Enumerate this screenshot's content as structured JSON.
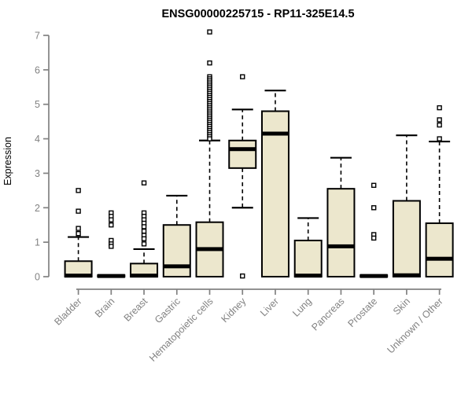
{
  "colors": {
    "box_fill": "#ece7cd",
    "box_border": "#000000",
    "median": "#000000",
    "axis": "#828282",
    "axis_text": "#828282",
    "title_text": "#000000",
    "outlier_fill": "#ffffff",
    "background": "#ffffff"
  },
  "chart_data": {
    "type": "boxplot",
    "title": "ENSG00000225715 - RP11-325E14.5",
    "xlabel": "",
    "ylabel": "Expression",
    "ylim": [
      0,
      7.3
    ],
    "yticks": [
      0,
      1,
      2,
      3,
      4,
      5,
      6,
      7
    ],
    "grid": "off",
    "legend": "none",
    "categories": [
      "Bladder",
      "Brain",
      "Breast",
      "Gastric",
      "Hematopoietic cells",
      "Kidney",
      "Liver",
      "Lung",
      "Pancreas",
      "Prostate",
      "Skin",
      "Unknown / Other"
    ],
    "series": [
      {
        "name": "Bladder",
        "q1": 0,
        "median": 0.03,
        "q3": 0.45,
        "whisker_low": 0,
        "whisker_high": 1.15,
        "outliers": [
          2.5,
          1.9,
          1.4,
          1.25
        ]
      },
      {
        "name": "Brain",
        "q1": 0,
        "median": 0.02,
        "q3": 0.04,
        "whisker_low": 0,
        "whisker_high": 0.04,
        "outliers": [
          1.85,
          1.75,
          1.65,
          1.5,
          1.05,
          0.95,
          0.88
        ]
      },
      {
        "name": "Breast",
        "q1": 0,
        "median": 0.03,
        "q3": 0.38,
        "whisker_low": 0,
        "whisker_high": 0.8,
        "outliers": [
          2.72,
          1.85,
          1.75,
          1.65,
          1.55,
          1.45,
          1.32,
          1.2,
          1.1,
          0.95
        ]
      },
      {
        "name": "Gastric",
        "q1": 0,
        "median": 0.3,
        "q3": 1.5,
        "whisker_low": 0,
        "whisker_high": 2.35,
        "outliers": []
      },
      {
        "name": "Hematopoietic cells",
        "q1": 0,
        "median": 0.8,
        "q3": 1.58,
        "whisker_low": 0,
        "whisker_high": 3.95,
        "outliers": [
          7.1,
          6.2,
          5.8,
          5.74,
          5.68,
          5.62,
          5.56,
          5.5,
          5.44,
          5.38,
          5.32,
          5.26,
          5.2,
          5.14,
          5.08,
          5.02,
          4.96,
          4.9,
          4.84,
          4.78,
          4.72,
          4.66,
          4.6,
          4.54,
          4.48,
          4.42,
          4.36,
          4.3,
          4.24,
          4.18,
          4.12,
          4.06,
          4.0
        ]
      },
      {
        "name": "Kidney",
        "q1": 3.15,
        "median": 3.7,
        "q3": 3.95,
        "whisker_low": 2.0,
        "whisker_high": 4.85,
        "outliers": [
          5.8,
          0.02
        ]
      },
      {
        "name": "Liver",
        "q1": 0,
        "median": 4.15,
        "q3": 4.8,
        "whisker_low": 0,
        "whisker_high": 5.4,
        "outliers": []
      },
      {
        "name": "Lung",
        "q1": 0,
        "median": 0.03,
        "q3": 1.05,
        "whisker_low": 0,
        "whisker_high": 1.7,
        "outliers": []
      },
      {
        "name": "Pancreas",
        "q1": 0,
        "median": 0.88,
        "q3": 2.55,
        "whisker_low": 0,
        "whisker_high": 3.45,
        "outliers": []
      },
      {
        "name": "Prostate",
        "q1": 0,
        "median": 0.02,
        "q3": 0.04,
        "whisker_low": 0,
        "whisker_high": 0.04,
        "outliers": [
          2.65,
          2.0,
          1.22,
          1.12
        ]
      },
      {
        "name": "Skin",
        "q1": 0,
        "median": 0.04,
        "q3": 2.2,
        "whisker_low": 0,
        "whisker_high": 4.1,
        "outliers": []
      },
      {
        "name": "Unknown / Other",
        "q1": 0,
        "median": 0.52,
        "q3": 1.55,
        "whisker_low": 0,
        "whisker_high": 3.92,
        "outliers": [
          4.9,
          4.55,
          4.4,
          4.0
        ]
      }
    ]
  }
}
